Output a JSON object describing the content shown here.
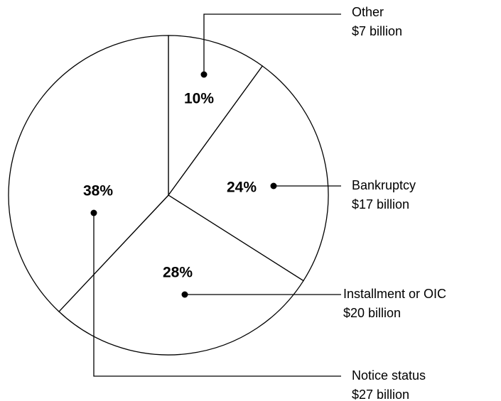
{
  "chart_data": {
    "type": "pie",
    "categories": [
      "Other",
      "Bankruptcy",
      "Installment or OIC",
      "Notice status"
    ],
    "values": [
      10,
      24,
      28,
      38
    ],
    "value_labels": [
      "10%",
      "24%",
      "28%",
      "38%"
    ],
    "amount_labels": [
      "$7 billion",
      "$17 billion",
      "$20 billion",
      "$27 billion"
    ],
    "color": "#ffffff"
  }
}
